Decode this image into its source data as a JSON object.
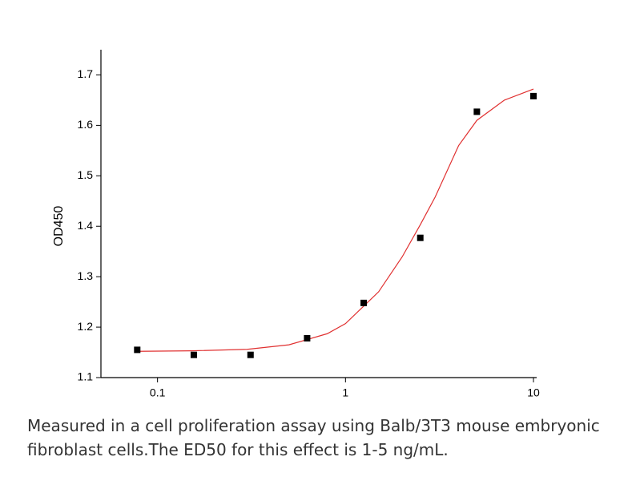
{
  "chart_data": {
    "type": "scatter",
    "x_scale": "log",
    "y_label": "OD450",
    "xlim": [
      0.05,
      10.4
    ],
    "ylim": [
      1.1,
      1.75
    ],
    "xticks": [
      0.1,
      1,
      10
    ],
    "yticks": [
      1.1,
      1.2,
      1.3,
      1.4,
      1.5,
      1.6,
      1.7
    ],
    "series": [
      {
        "style": "markers",
        "marker": "square",
        "color": "#000000",
        "x": [
          0.078,
          0.156,
          0.3125,
          0.625,
          1.25,
          2.5,
          5,
          10
        ],
        "values": [
          1.155,
          1.145,
          1.145,
          1.178,
          1.248,
          1.377,
          1.627,
          1.658
        ]
      },
      {
        "style": "line",
        "color": "#e03030",
        "x": [
          0.078,
          0.15,
          0.3,
          0.5,
          0.8,
          1,
          1.5,
          2,
          2.5,
          3,
          4,
          5,
          7,
          10
        ],
        "values": [
          1.152,
          1.153,
          1.156,
          1.165,
          1.187,
          1.207,
          1.27,
          1.339,
          1.403,
          1.458,
          1.56,
          1.61,
          1.65,
          1.672
        ]
      }
    ],
    "caption": "Measured in a cell proliferation assay using Balb/3T3 mouse embryonic fibroblast cells.The ED50 for this effect is 1-5 ng/mL."
  }
}
